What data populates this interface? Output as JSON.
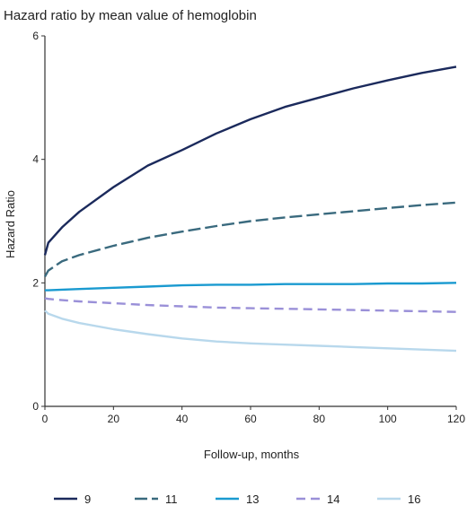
{
  "chart_data": {
    "type": "line",
    "title": "Hazard ratio by mean value of hemoglobin",
    "xlabel": "Follow-up, months",
    "ylabel": "Hazard Ratio",
    "xlim": [
      0,
      120
    ],
    "ylim": [
      0,
      6
    ],
    "xticks": [
      0,
      20,
      40,
      60,
      80,
      100,
      120
    ],
    "yticks": [
      0,
      2,
      4,
      6
    ],
    "grid": false,
    "legend_position": "bottom",
    "x": [
      0,
      1,
      5,
      10,
      20,
      30,
      40,
      50,
      60,
      70,
      80,
      90,
      100,
      110,
      120
    ],
    "series": [
      {
        "name": "9",
        "color": "#1b2a5c",
        "dash": "solid",
        "values": [
          2.45,
          2.65,
          2.9,
          3.15,
          3.55,
          3.9,
          4.15,
          4.42,
          4.65,
          4.85,
          5.0,
          5.15,
          5.28,
          5.4,
          5.5
        ]
      },
      {
        "name": "11",
        "color": "#3a6a7e",
        "dash": "longdash",
        "values": [
          2.1,
          2.2,
          2.35,
          2.45,
          2.6,
          2.73,
          2.83,
          2.92,
          3.0,
          3.06,
          3.11,
          3.16,
          3.21,
          3.26,
          3.3
        ]
      },
      {
        "name": "13",
        "color": "#1a9ad0",
        "dash": "solid",
        "values": [
          1.88,
          1.88,
          1.89,
          1.9,
          1.92,
          1.94,
          1.96,
          1.97,
          1.97,
          1.98,
          1.98,
          1.98,
          1.99,
          1.99,
          2.0
        ]
      },
      {
        "name": "14",
        "color": "#9a90d8",
        "dash": "dash",
        "values": [
          1.75,
          1.74,
          1.72,
          1.7,
          1.67,
          1.64,
          1.62,
          1.6,
          1.59,
          1.58,
          1.57,
          1.56,
          1.55,
          1.54,
          1.53
        ]
      },
      {
        "name": "16",
        "color": "#b8d8ec",
        "dash": "solid",
        "values": [
          1.55,
          1.5,
          1.42,
          1.35,
          1.25,
          1.17,
          1.1,
          1.05,
          1.02,
          1.0,
          0.98,
          0.96,
          0.94,
          0.92,
          0.9
        ]
      }
    ]
  }
}
